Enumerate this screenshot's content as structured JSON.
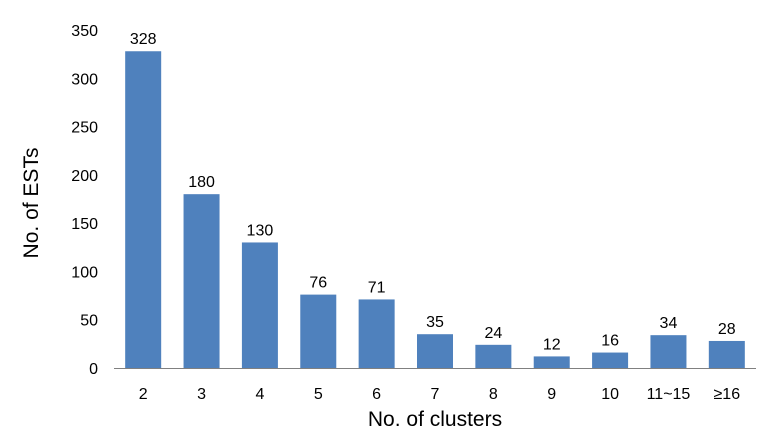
{
  "chart_data": {
    "type": "bar",
    "categories": [
      "2",
      "3",
      "4",
      "5",
      "6",
      "7",
      "8",
      "9",
      "10",
      "11~15",
      "≥16"
    ],
    "values": [
      328,
      180,
      130,
      76,
      71,
      35,
      24,
      12,
      16,
      34,
      28
    ],
    "xlabel": "No. of clusters",
    "ylabel": "No. of ESTs",
    "ylim": [
      0,
      350
    ],
    "yticks": [
      0,
      50,
      100,
      150,
      200,
      250,
      300,
      350
    ],
    "grid": false,
    "legend": "none",
    "bar_color": "#4f81bd"
  }
}
